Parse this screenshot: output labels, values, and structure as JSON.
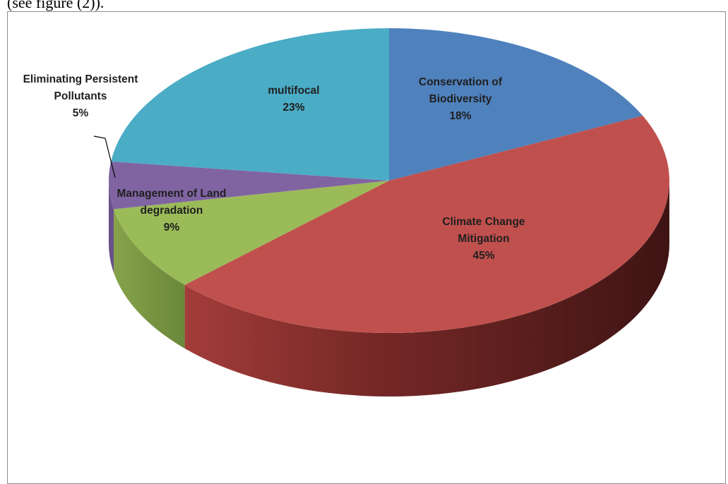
{
  "caption": "(see figure (2)).",
  "chart_data": {
    "type": "pie",
    "style": "3d-exploded-none",
    "slices": [
      {
        "label": [
          "Conservation of",
          "Biodiversity"
        ],
        "percent": "18%",
        "value": 18,
        "color": "#4f81bd"
      },
      {
        "label": [
          "Climate Change",
          "Mitigation"
        ],
        "percent": "45%",
        "value": 45,
        "color": "#c0504d"
      },
      {
        "label": [
          "Management of Land",
          "degradation"
        ],
        "percent": "9%",
        "value": 9,
        "color": "#9bbb59"
      },
      {
        "label": [
          "Eliminating Persistent",
          "Pollutants"
        ],
        "percent": "5%",
        "value": 5,
        "color": "#8064a2"
      },
      {
        "label": [
          "multifocal"
        ],
        "percent": "23%",
        "value": 23,
        "color": "#4bacc6"
      }
    ],
    "legend": "none",
    "start_angle_deg": 0,
    "direction": "clockwise"
  }
}
